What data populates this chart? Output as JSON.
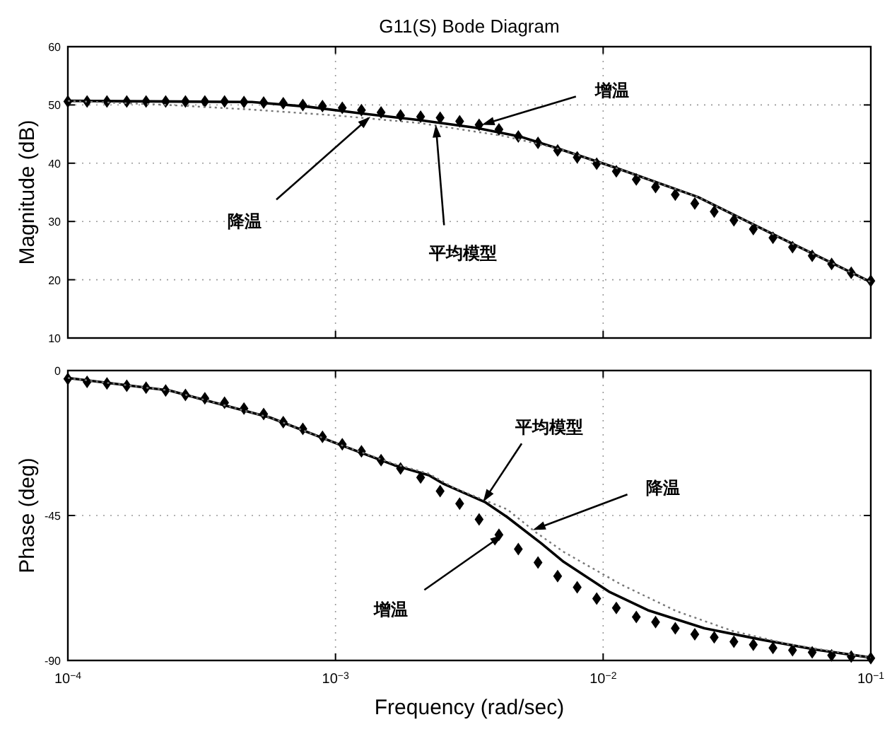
{
  "chart_data": [
    {
      "type": "line",
      "title": "G11(S)   Bode Diagram",
      "ylabel": "Magnitude (dB)",
      "log": "x",
      "grid": true,
      "tick_labels": "y",
      "xlim": [
        0.0001,
        0.1
      ],
      "xticks": [
        {
          "value": 0.0001,
          "label": null
        },
        {
          "value": 0.001,
          "label": null
        },
        {
          "value": 0.01,
          "label": null
        },
        {
          "value": 0.1,
          "label": null
        }
      ],
      "ylim": [
        10,
        60
      ],
      "yticks": [
        10,
        20,
        30,
        40,
        50,
        60
      ],
      "series": [
        {
          "type": "scatter",
          "marker": "diamond",
          "color": "#000000",
          "x": [
            0.0001,
            0.000118,
            0.00014,
            0.000166,
            0.000196,
            0.000232,
            0.000275,
            0.000325,
            0.000385,
            0.000455,
            0.000539,
            0.000638,
            0.000755,
            0.000894,
            0.00106,
            0.00125,
            0.00148,
            0.00175,
            0.00208,
            0.00246,
            0.00291,
            0.00344,
            0.00408,
            0.00482,
            0.00571,
            0.00676,
            0.008,
            0.00946,
            0.0112,
            0.0133,
            0.0157,
            0.0186,
            0.022,
            0.026,
            0.0308,
            0.0364,
            0.0431,
            0.051,
            0.0604,
            0.0714,
            0.0845,
            0.1
          ],
          "values": [
            50.6,
            50.6,
            50.6,
            50.6,
            50.6,
            50.6,
            50.6,
            50.6,
            50.6,
            50.5,
            50.4,
            50.3,
            50.0,
            49.8,
            49.5,
            49.1,
            48.7,
            48.2,
            48.0,
            47.8,
            47.2,
            46.6,
            45.8,
            44.6,
            43.5,
            42.2,
            41.0,
            39.9,
            38.6,
            37.2,
            35.9,
            34.6,
            33.1,
            31.7,
            30.2,
            28.7,
            27.2,
            25.6,
            24.1,
            22.7,
            21.2,
            19.8
          ]
        },
        {
          "type": "line",
          "line_style": "solid",
          "color": "#000000",
          "x": [
            0.0001,
            0.000487,
            0.000787,
            0.00127,
            0.00205,
            0.00332,
            0.00487,
            0.00681,
            0.011,
            0.0226,
            0.0464,
            0.1
          ],
          "values": [
            50.7,
            50.5,
            49.7,
            48.5,
            47.4,
            46.1,
            44.6,
            42.5,
            39.3,
            34.2,
            27.1,
            19.6
          ]
        },
        {
          "type": "line",
          "line_style": "dotted",
          "color": "#777777",
          "x": [
            0.0001,
            0.000237,
            0.000487,
            0.001,
            0.00205,
            0.00422,
            0.00681,
            0.011,
            0.0226,
            0.0464,
            0.1
          ],
          "values": [
            50.7,
            50.0,
            49.2,
            48.2,
            46.9,
            44.7,
            42.5,
            39.3,
            34.2,
            27.1,
            19.6
          ]
        }
      ],
      "annotations": [
        {
          "text": "增温",
          "x": 0.00352,
          "y": 46.6
        },
        {
          "text": "降温",
          "x": 0.00135,
          "y": 48.0
        },
        {
          "text": "平均模型",
          "x": 0.00237,
          "y": 46.6
        }
      ]
    },
    {
      "type": "line",
      "xlabel": "Frequency (rad/sec)",
      "ylabel": "Phase (deg)",
      "log": "x",
      "grid": true,
      "xlim": [
        0.0001,
        0.1
      ],
      "xticks": [
        {
          "value": 0.0001,
          "label": "10$^{−4}$"
        },
        {
          "value": 0.001,
          "label": "10$^{−3}$"
        },
        {
          "value": 0.01,
          "label": "10$^{−2}$"
        },
        {
          "value": 0.1,
          "label": "10$^{−1}$"
        }
      ],
      "ylim": [
        -90,
        0
      ],
      "yticks": [
        -90,
        -45,
        0
      ],
      "series": [
        {
          "type": "scatter",
          "marker": "diamond",
          "color": "#000000",
          "x": [
            0.0001,
            0.000118,
            0.00014,
            0.000166,
            0.000196,
            0.000232,
            0.000275,
            0.000325,
            0.000385,
            0.000455,
            0.000539,
            0.000638,
            0.000755,
            0.000894,
            0.00106,
            0.00125,
            0.00148,
            0.00175,
            0.00208,
            0.00246,
            0.00291,
            0.00344,
            0.00408,
            0.00482,
            0.00571,
            0.00676,
            0.008,
            0.00946,
            0.0112,
            0.0133,
            0.0157,
            0.0186,
            0.022,
            0.026,
            0.0308,
            0.0364,
            0.0431,
            0.051,
            0.0604,
            0.0714,
            0.0845,
            0.1
          ],
          "values": [
            -2.6,
            -3.5,
            -4.0,
            -4.7,
            -5.3,
            -6.2,
            -7.6,
            -8.6,
            -10.0,
            -11.8,
            -13.5,
            -16.0,
            -18.1,
            -20.6,
            -22.9,
            -25.1,
            -27.8,
            -30.4,
            -33.2,
            -37.4,
            -41.3,
            -46.2,
            -51.0,
            -55.4,
            -59.6,
            -63.8,
            -67.3,
            -70.8,
            -73.7,
            -76.5,
            -78.1,
            -80.0,
            -81.9,
            -82.8,
            -84.2,
            -85.1,
            -86.1,
            -86.8,
            -87.5,
            -88.4,
            -88.8,
            -89.3
          ]
        },
        {
          "type": "line",
          "line_style": "solid",
          "color": "#000000",
          "x": [
            0.0001,
            0.00024,
            0.00057,
            0.00103,
            0.00166,
            0.00223,
            0.00254,
            0.00361,
            0.00438,
            0.00586,
            0.00712,
            0.0105,
            0.0147,
            0.0239,
            0.0388,
            0.0631,
            0.1
          ],
          "values": [
            -2.3,
            -6.2,
            -14.6,
            -22.9,
            -29.4,
            -32.5,
            -35.2,
            -40.8,
            -45.5,
            -53.6,
            -59.4,
            -68.6,
            -74.4,
            -80.0,
            -83.5,
            -86.7,
            -89.1
          ]
        },
        {
          "type": "line",
          "line_style": "dotted",
          "color": "#777777",
          "x": [
            0.0001,
            0.00024,
            0.00057,
            0.00103,
            0.00166,
            0.00223,
            0.00277,
            0.00438,
            0.00558,
            0.00712,
            0.0116,
            0.0188,
            0.0306,
            0.0497,
            0.1
          ],
          "values": [
            -2.3,
            -6.2,
            -14.6,
            -22.9,
            -29.0,
            -32.0,
            -36.4,
            -43.1,
            -50.1,
            -56.3,
            -66.3,
            -74.7,
            -80.9,
            -85.0,
            -89.1
          ]
        }
      ],
      "annotations": [
        {
          "text": "平均模型",
          "x": 0.00356,
          "y": -40.8
        },
        {
          "text": "降温",
          "x": 0.00546,
          "y": -49.5
        },
        {
          "text": "增温",
          "x": 0.00422,
          "y": -51.0
        }
      ]
    }
  ]
}
